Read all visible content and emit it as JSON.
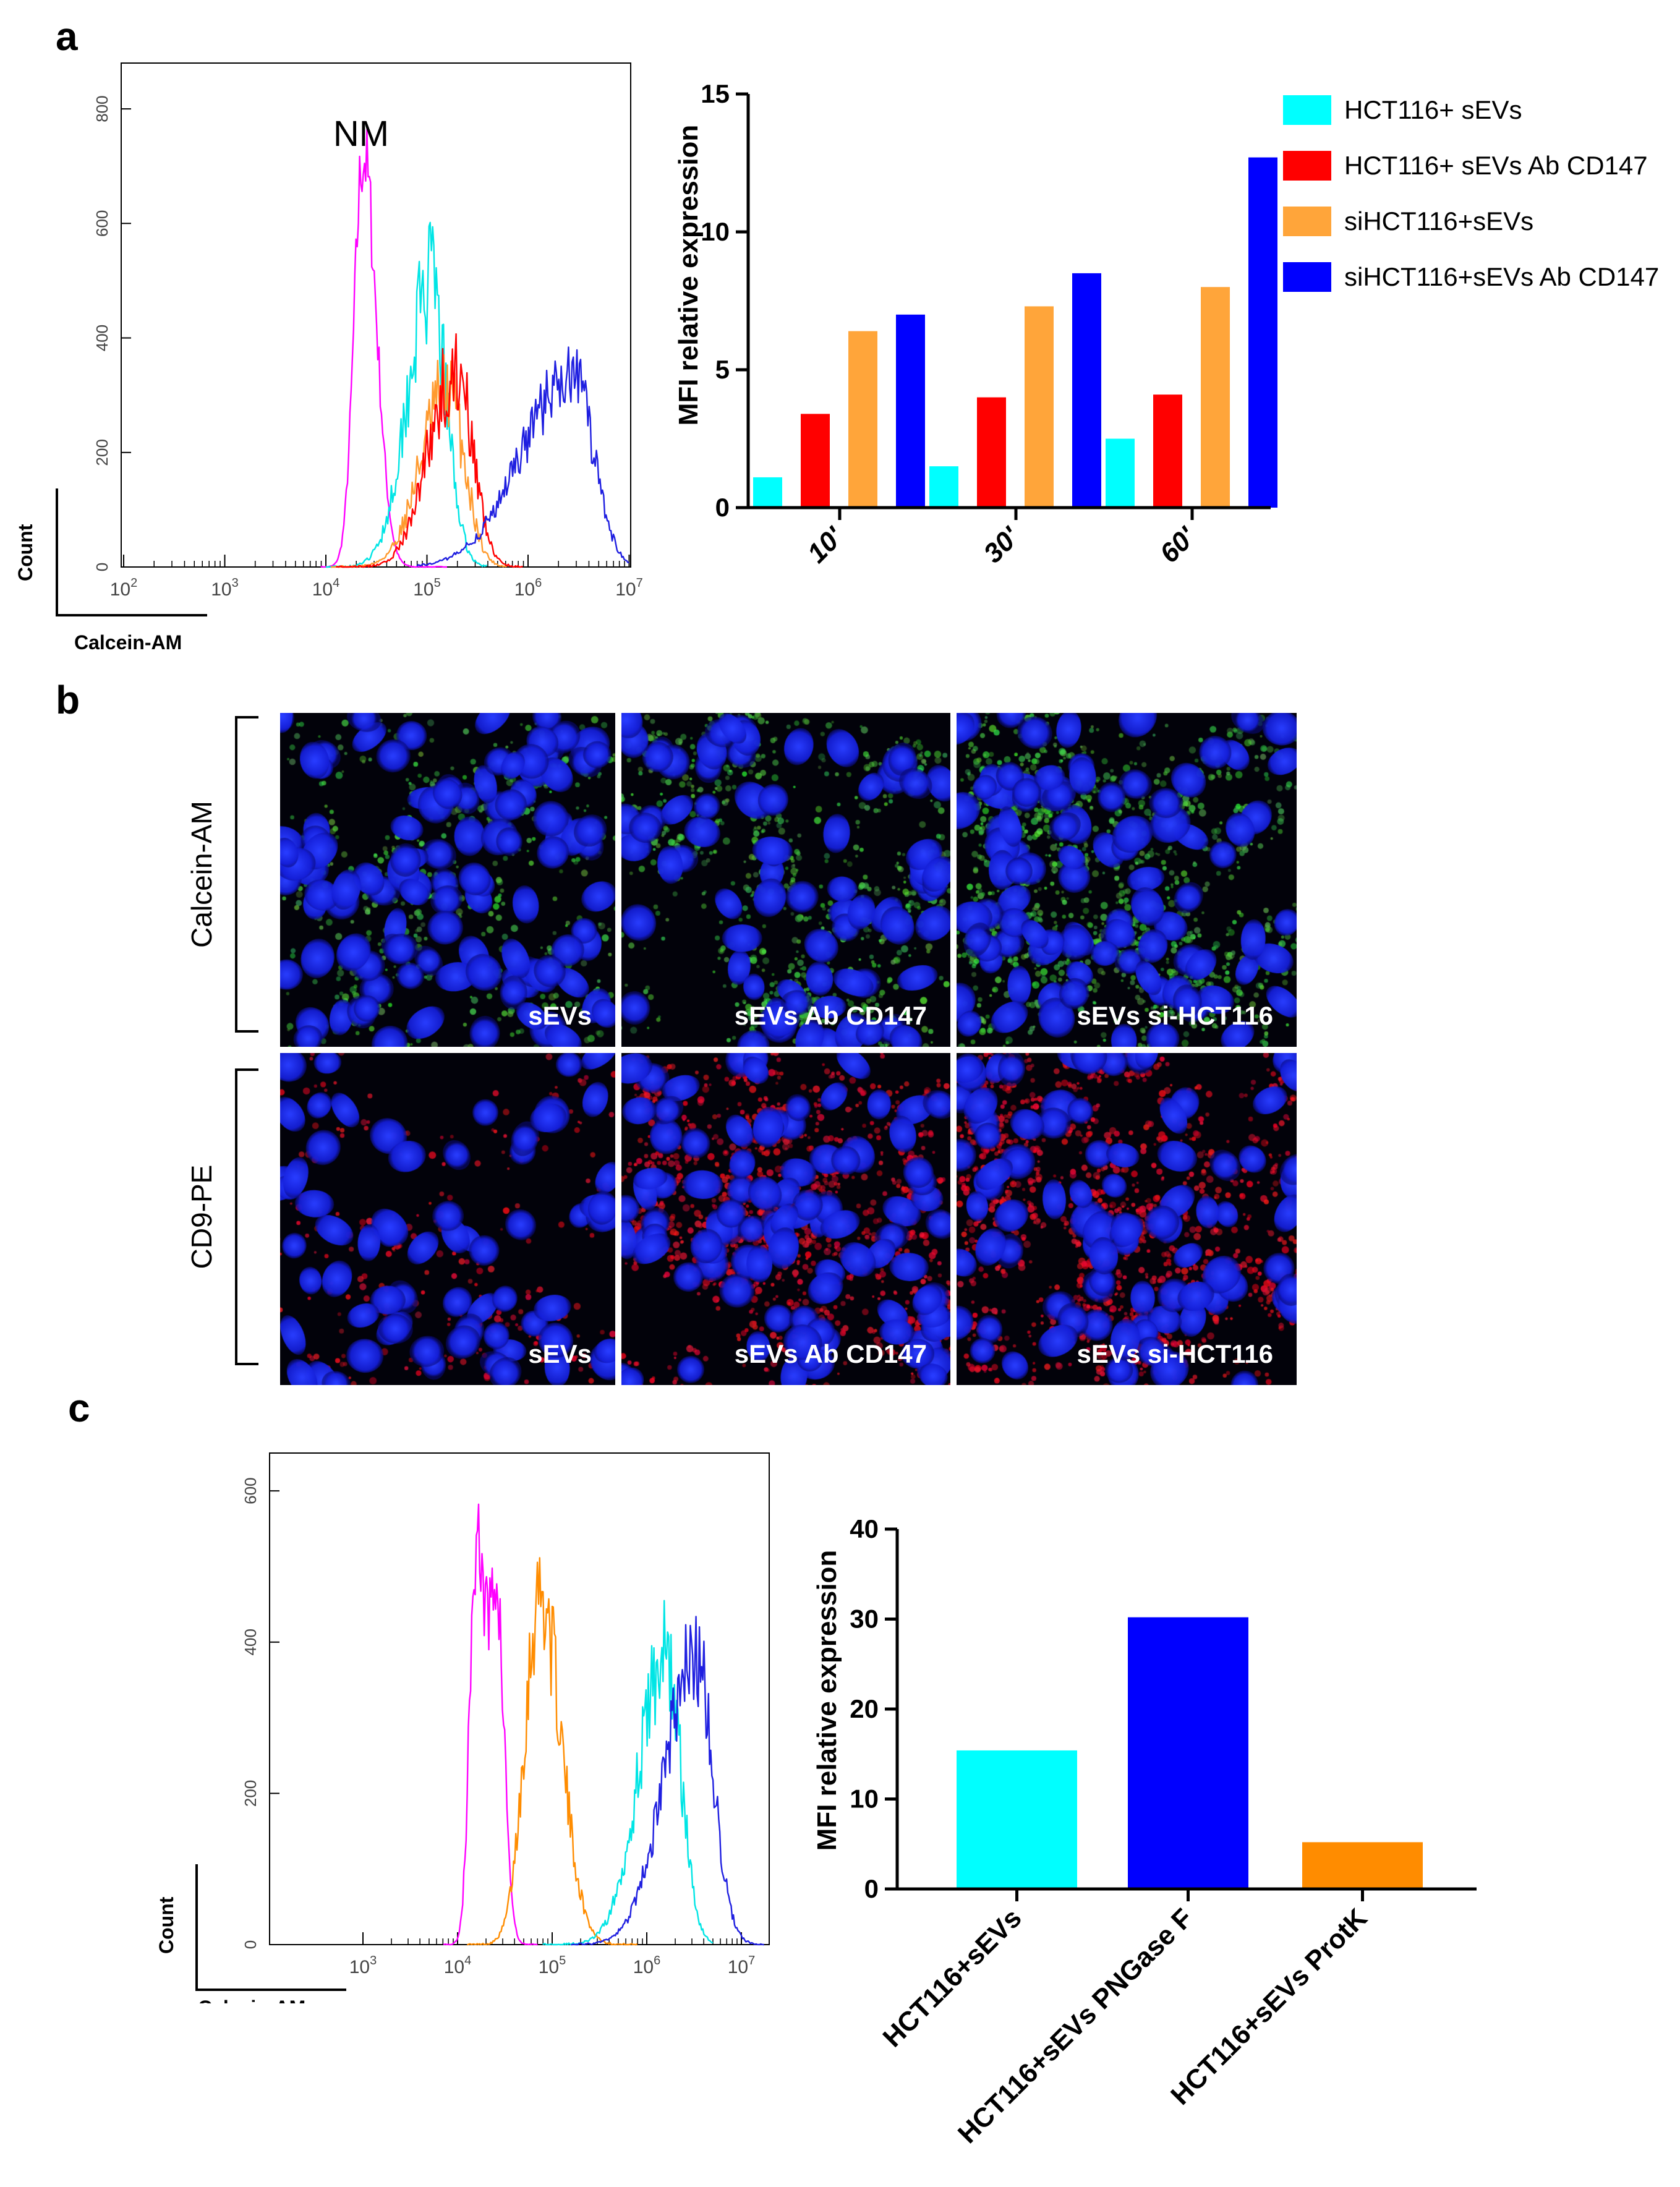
{
  "panels": {
    "a": "a",
    "b": "b",
    "c": "c"
  },
  "histogram_a": {
    "annotation": "NM",
    "count_label": "Count",
    "x_label": "Calcein-AM",
    "y_ticks": [
      "0",
      "200",
      "400",
      "600",
      "800"
    ],
    "x_ticks": [
      {
        "base": "10",
        "exp": "2"
      },
      {
        "base": "10",
        "exp": "3"
      },
      {
        "base": "10",
        "exp": "4"
      },
      {
        "base": "10",
        "exp": "5"
      },
      {
        "base": "10",
        "exp": "6"
      },
      {
        "base": "10",
        "exp": "7"
      }
    ],
    "colors": {
      "nm": "#ff00ff",
      "cyan": "#00e5e5",
      "orange": "#ff9a2e",
      "red": "#ff0000",
      "blue": "#1f1fe0"
    }
  },
  "histogram_c": {
    "count_label": "Count",
    "x_label": "Calcein-AM",
    "y_ticks": [
      "0",
      "200",
      "400",
      "600"
    ],
    "x_ticks": [
      {
        "base": "10",
        "exp": "3"
      },
      {
        "base": "10",
        "exp": "4"
      },
      {
        "base": "10",
        "exp": "5"
      },
      {
        "base": "10",
        "exp": "6"
      },
      {
        "base": "10",
        "exp": "7"
      }
    ],
    "colors": {
      "nm": "#ff00ff",
      "orange": "#ff8c00",
      "cyan": "#00e5e5",
      "blue": "#1f1fe0"
    }
  },
  "microscopy": {
    "row_labels": [
      "Calcein-AM",
      "CD9-PE"
    ],
    "captions": [
      "sEVs",
      "sEVs Ab CD147",
      "sEVs si-HCT116",
      "sEVs",
      "sEVs Ab CD147",
      "sEVs si-HCT116"
    ]
  },
  "chart_data": [
    {
      "type": "bar",
      "title": "",
      "xlabel": "",
      "ylabel": "MFI relative expression",
      "categories": [
        "10'",
        "30'",
        "60'"
      ],
      "ylim": [
        0,
        15
      ],
      "yticks": [
        0,
        5,
        10,
        15
      ],
      "legend_position": "right",
      "series": [
        {
          "name": "HCT116+ sEVs",
          "color": "#00ffff",
          "values": [
            1.1,
            1.5,
            2.5
          ]
        },
        {
          "name": "HCT116+ sEVs Ab CD147",
          "color": "#ff0000",
          "values": [
            3.4,
            4.0,
            4.1
          ]
        },
        {
          "name": "siHCT116+sEVs",
          "color": "#ffa53a",
          "values": [
            6.4,
            7.3,
            8.0
          ]
        },
        {
          "name": "siHCT116+sEVs Ab CD147",
          "color": "#0000ff",
          "values": [
            7.0,
            8.5,
            12.7
          ]
        }
      ]
    },
    {
      "type": "bar",
      "title": "",
      "xlabel": "",
      "ylabel": "MFI relative expression",
      "categories": [
        "HCT116+sEVs",
        "HCT116+sEVs PNGase F",
        "HCT116+sEVs ProtK"
      ],
      "ylim": [
        0,
        40
      ],
      "yticks": [
        0,
        10,
        20,
        30,
        40
      ],
      "colors": [
        "#00ffff",
        "#0000ff",
        "#ff8c00"
      ],
      "values": [
        15.4,
        30.2,
        5.2
      ]
    }
  ]
}
